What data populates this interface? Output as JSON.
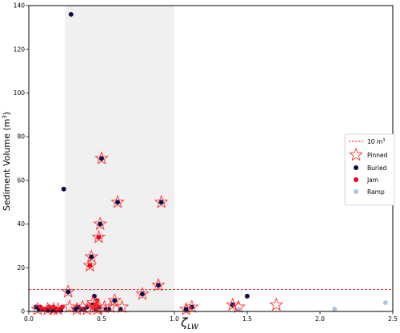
{
  "chart_data": {
    "type": "scatter",
    "title": "",
    "xlabel": "ζ",
    "xlabel_sub": "LW",
    "ylabel": "Sediment Volume (m",
    "ylabel_sup": "3",
    "ylabel_close": ")",
    "xlim": [
      0,
      2.5
    ],
    "ylim": [
      0,
      140
    ],
    "xticks": [
      0.0,
      0.5,
      1.0,
      1.5,
      2.0,
      2.5
    ],
    "xtick_labels": [
      "0.0",
      "0.5",
      "1.0",
      "1.5",
      "2.0",
      "2.5"
    ],
    "yticks": [
      0,
      20,
      40,
      60,
      80,
      100,
      120,
      140
    ],
    "ytick_labels": [
      "0",
      "20",
      "40",
      "60",
      "80",
      "100",
      "120",
      "140"
    ],
    "grid": false,
    "shaded_region": {
      "x_start": 0.25,
      "x_end": 1.0,
      "color": "#f0f0f0"
    },
    "threshold": {
      "y": 10,
      "label": "10 m",
      "label_sup": "3",
      "color": "#ff2020"
    },
    "legend_position": "center-right",
    "legend": [
      {
        "key": "threshold",
        "label": "10 m",
        "sup": "3"
      },
      {
        "key": "pinned",
        "label": "Pinned"
      },
      {
        "key": "buried",
        "label": "Buried"
      },
      {
        "key": "jam",
        "label": "Jam"
      },
      {
        "key": "ramp",
        "label": "Ramp"
      }
    ],
    "colors": {
      "buried": "#0d0d4f",
      "jam": "#e8001c",
      "ramp": "#aec6e0",
      "pinned": "#ff3030"
    },
    "series": [
      {
        "key": "pinned",
        "points": [
          [
            0.06,
            1
          ],
          [
            0.13,
            1
          ],
          [
            0.17,
            1
          ],
          [
            0.2,
            1
          ],
          [
            0.27,
            9
          ],
          [
            0.28,
            2
          ],
          [
            0.33,
            1
          ],
          [
            0.37,
            2
          ],
          [
            0.4,
            1
          ],
          [
            0.42,
            21
          ],
          [
            0.43,
            25
          ],
          [
            0.44,
            4
          ],
          [
            0.45,
            3
          ],
          [
            0.46,
            2
          ],
          [
            0.47,
            1
          ],
          [
            0.48,
            34
          ],
          [
            0.49,
            40
          ],
          [
            0.5,
            70
          ],
          [
            0.52,
            2
          ],
          [
            0.56,
            2
          ],
          [
            0.59,
            5
          ],
          [
            0.61,
            50
          ],
          [
            0.64,
            2
          ],
          [
            0.78,
            8
          ],
          [
            0.89,
            12
          ],
          [
            0.91,
            50
          ],
          [
            1.08,
            1
          ],
          [
            1.12,
            2
          ],
          [
            1.4,
            3
          ],
          [
            1.44,
            2
          ],
          [
            1.7,
            3
          ]
        ]
      },
      {
        "key": "buried",
        "points": [
          [
            0.05,
            2
          ],
          [
            0.07,
            1
          ],
          [
            0.1,
            1
          ],
          [
            0.13,
            0.5
          ],
          [
            0.15,
            1
          ],
          [
            0.16,
            0.5
          ],
          [
            0.18,
            1
          ],
          [
            0.19,
            0.5
          ],
          [
            0.21,
            1
          ],
          [
            0.22,
            0.5
          ],
          [
            0.24,
            56
          ],
          [
            0.27,
            9
          ],
          [
            0.29,
            136
          ],
          [
            0.32,
            1
          ],
          [
            0.34,
            2
          ],
          [
            0.36,
            1
          ],
          [
            0.38,
            1
          ],
          [
            0.4,
            2
          ],
          [
            0.43,
            25
          ],
          [
            0.44,
            3
          ],
          [
            0.45,
            7
          ],
          [
            0.46,
            1
          ],
          [
            0.48,
            2
          ],
          [
            0.49,
            40
          ],
          [
            0.5,
            70
          ],
          [
            0.53,
            1
          ],
          [
            0.55,
            1
          ],
          [
            0.59,
            5
          ],
          [
            0.61,
            50
          ],
          [
            0.63,
            1
          ],
          [
            0.78,
            8
          ],
          [
            0.89,
            12
          ],
          [
            0.91,
            50
          ],
          [
            1.08,
            1
          ],
          [
            1.12,
            2
          ],
          [
            1.4,
            3
          ],
          [
            1.5,
            7
          ]
        ]
      },
      {
        "key": "jam",
        "points": [
          [
            0.08,
            2
          ],
          [
            0.11,
            1
          ],
          [
            0.14,
            2
          ],
          [
            0.17,
            2
          ],
          [
            0.2,
            1
          ],
          [
            0.23,
            2
          ],
          [
            0.42,
            21
          ],
          [
            0.44,
            2
          ],
          [
            0.46,
            3
          ],
          [
            0.47,
            5
          ],
          [
            0.48,
            34
          ]
        ]
      },
      {
        "key": "ramp",
        "points": [
          [
            1.44,
            1
          ],
          [
            2.1,
            1
          ],
          [
            2.45,
            4
          ]
        ]
      }
    ]
  }
}
